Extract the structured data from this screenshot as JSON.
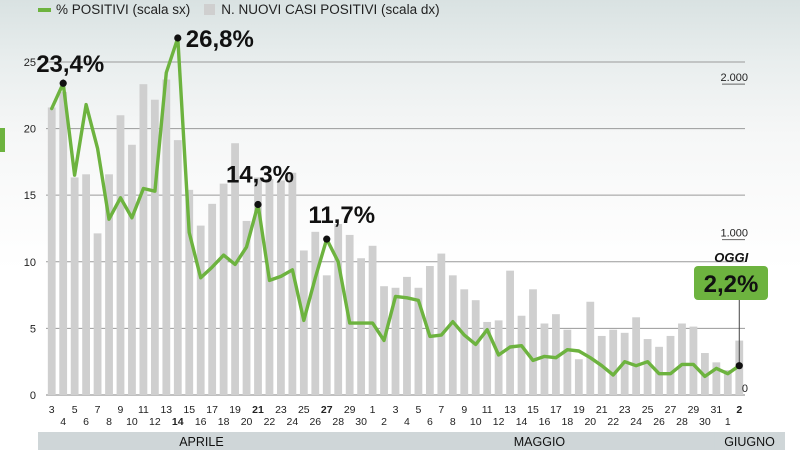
{
  "legend": {
    "line_label": "% POSITIVI (scala sx)",
    "bar_label": "N. NUOVI CASI POSITIVI (scala dx)"
  },
  "colors": {
    "line": "#6db33f",
    "bar": "#cfcfcf",
    "grid": "#9a9a9a",
    "month_band": "#cfd6d8",
    "today_badge": "#6db33f"
  },
  "chart_data": {
    "type": "bar+line",
    "left_axis": {
      "ticks": [
        "0",
        "5",
        "10",
        "15",
        "20",
        "25"
      ],
      "range": [
        0,
        28
      ]
    },
    "right_axis": {
      "ticks": [
        "0",
        "1.000",
        "2.000"
      ],
      "range": [
        0,
        2400
      ]
    },
    "grid": true,
    "categories": [
      "3",
      "4",
      "5",
      "6",
      "7",
      "8",
      "9",
      "10",
      "11",
      "12",
      "13",
      "14",
      "15",
      "16",
      "17",
      "18",
      "19",
      "20",
      "21",
      "22",
      "23",
      "24",
      "25",
      "26",
      "27",
      "28",
      "29",
      "30",
      "1",
      "2",
      "3",
      "4",
      "5",
      "6",
      "7",
      "8",
      "9",
      "10",
      "11",
      "12",
      "13",
      "14",
      "15",
      "16",
      "17",
      "18",
      "19",
      "20",
      "21",
      "22",
      "23",
      "24",
      "25",
      "26",
      "27",
      "28",
      "29",
      "30",
      "31",
      "1",
      "2"
    ],
    "emphasized_labels": [
      "14",
      "21",
      "27",
      "2"
    ],
    "months": [
      {
        "name": "APRILE",
        "start": 0,
        "end": 27
      },
      {
        "name": "MAGGIO",
        "start": 28,
        "end": 58
      },
      {
        "name": "GIUGNO",
        "start": 59,
        "end": 60
      }
    ],
    "series": [
      {
        "name": "N. NUOVI CASI POSITIVI (scala dx)",
        "type": "bar",
        "axis": "right",
        "values": [
          1850,
          1950,
          1400,
          1420,
          1040,
          1420,
          1800,
          1610,
          2000,
          1900,
          2030,
          1640,
          1320,
          1090,
          1230,
          1360,
          1620,
          1120,
          1400,
          1390,
          1380,
          1430,
          930,
          1050,
          770,
          1100,
          1030,
          880,
          960,
          700,
          690,
          760,
          690,
          830,
          910,
          770,
          680,
          610,
          470,
          480,
          800,
          510,
          680,
          460,
          520,
          420,
          230,
          600,
          380,
          420,
          400,
          500,
          360,
          310,
          380,
          460,
          440,
          270,
          210,
          160,
          350
        ],
        "labels": []
      },
      {
        "name": "% POSITIVI (scala sx)",
        "type": "line",
        "axis": "left",
        "values": [
          21.5,
          23.4,
          16.5,
          21.8,
          18.5,
          13.2,
          14.8,
          13.3,
          15.5,
          15.3,
          24.2,
          26.8,
          12.2,
          8.8,
          9.6,
          10.5,
          9.8,
          11.1,
          14.3,
          8.6,
          8.9,
          9.4,
          5.6,
          8.8,
          11.7,
          10.0,
          5.4,
          5.4,
          5.4,
          4.1,
          7.4,
          7.3,
          7.1,
          4.4,
          4.5,
          5.5,
          4.5,
          3.8,
          4.9,
          3.0,
          3.6,
          3.7,
          2.6,
          2.9,
          2.8,
          3.4,
          3.3,
          2.8,
          2.2,
          1.5,
          2.5,
          2.2,
          2.5,
          1.6,
          1.6,
          2.3,
          2.3,
          1.4,
          2.0,
          1.6,
          2.2
        ],
        "labels": [
          {
            "index": 1,
            "text": "23,4%"
          },
          {
            "index": 11,
            "text": "26,8%"
          },
          {
            "index": 18,
            "text": "14,3%"
          },
          {
            "index": 24,
            "text": "11,7%"
          }
        ]
      }
    ],
    "today": {
      "index": 60,
      "label": "OGGI",
      "value_text": "2,2%"
    }
  }
}
